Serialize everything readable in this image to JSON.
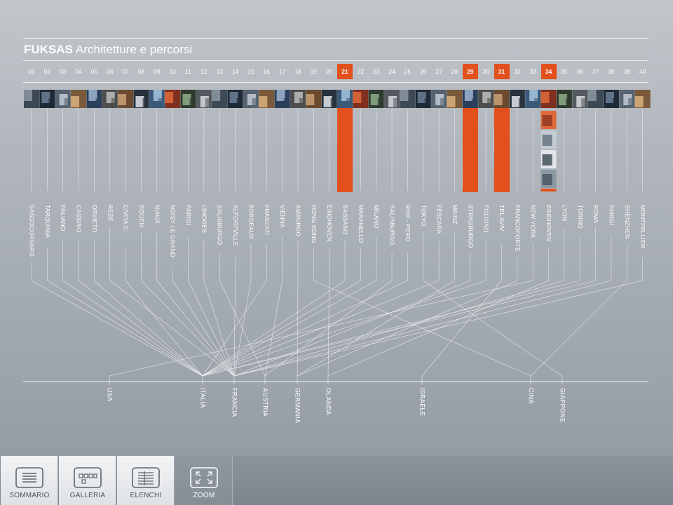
{
  "header": {
    "brand": "FUKSAS",
    "subtitle": "Architetture e percorsi"
  },
  "colors": {
    "accent": "#e2501c",
    "line": "#f4f5f6",
    "text": "#ffffff"
  },
  "projects": [
    {
      "n": "01",
      "city": "SASSOCORVARO",
      "country": "ITALIA"
    },
    {
      "n": "02",
      "city": "TARQUINIA",
      "country": "ITALIA"
    },
    {
      "n": "03",
      "city": "PALIANO",
      "country": "ITALIA"
    },
    {
      "n": "04",
      "city": "CASSINO",
      "country": "ITALIA"
    },
    {
      "n": "05",
      "city": "ORVIETO",
      "country": "ITALIA"
    },
    {
      "n": "06",
      "city": "REZÉ",
      "country": "FRANCIA"
    },
    {
      "n": "07",
      "city": "CIVITA C.",
      "country": "ITALIA"
    },
    {
      "n": "08",
      "city": "ROUEN",
      "country": "FRANCIA"
    },
    {
      "n": "09",
      "city": "NIAUX",
      "country": "FRANCIA"
    },
    {
      "n": "10",
      "city": "NOISY LE GRAND",
      "country": "FRANCIA"
    },
    {
      "n": "11",
      "city": "PARIGI",
      "country": "FRANCIA"
    },
    {
      "n": "12",
      "city": "LIMOGES",
      "country": "FRANCIA"
    },
    {
      "n": "13",
      "city": "SALISBURGO",
      "country": "AUSTRIA"
    },
    {
      "n": "14",
      "city": "ALFORTVILLE",
      "country": "FRANCIA"
    },
    {
      "n": "15",
      "city": "BORDEAUX",
      "country": "FRANCIA"
    },
    {
      "n": "16",
      "city": "FRASCATI",
      "country": "ITALIA"
    },
    {
      "n": "17",
      "city": "VIENNA",
      "country": "AUSTRIA"
    },
    {
      "n": "18",
      "city": "AMBURGO",
      "country": "GERMANIA"
    },
    {
      "n": "19",
      "city": "HONG KONG",
      "country": "CINA"
    },
    {
      "n": "20",
      "city": "EINDHOVEN",
      "country": "OLANDA"
    },
    {
      "n": "21",
      "city": "BASSANO",
      "country": "ITALIA",
      "highlight": true
    },
    {
      "n": "22",
      "city": "MARANELLO",
      "country": "ITALIA"
    },
    {
      "n": "23",
      "city": "MILANO",
      "country": "ITALIA"
    },
    {
      "n": "24",
      "city": "SALISBURGO",
      "country": "AUSTRIA"
    },
    {
      "n": "25",
      "city": "RHO - PERO",
      "country": "ITALIA"
    },
    {
      "n": "26",
      "city": "TOKYO",
      "country": "GIAPPONE"
    },
    {
      "n": "27",
      "city": "FESCARA",
      "country": "ITALIA"
    },
    {
      "n": "28",
      "city": "MAINZ",
      "country": "GERMANIA"
    },
    {
      "n": "29",
      "city": "STRASBURGO",
      "country": "FRANCIA",
      "highlight": true
    },
    {
      "n": "30",
      "city": "FOLIGNO",
      "country": "ITALIA"
    },
    {
      "n": "31",
      "city": "TEL AVIV",
      "country": "ISRAELE",
      "highlight": true
    },
    {
      "n": "32",
      "city": "FRANCOFORTE",
      "country": "GERMANIA"
    },
    {
      "n": "33",
      "city": "NEW YORK",
      "country": "USA"
    },
    {
      "n": "34",
      "city": "EINDHOVEN",
      "country": "OLANDA",
      "highlight": true
    },
    {
      "n": "35",
      "city": "LYON",
      "country": "FRANCIA"
    },
    {
      "n": "36",
      "city": "TORINO",
      "country": "ITALIA"
    },
    {
      "n": "37",
      "city": "ROMA",
      "country": "ITALIA"
    },
    {
      "n": "38",
      "city": "PARIGI",
      "country": "FRANCIA"
    },
    {
      "n": "39",
      "city": "SHENZHEN",
      "country": "CINA"
    },
    {
      "n": "40",
      "city": "MONTPELLIER",
      "country": "FRANCIA"
    }
  ],
  "countries": [
    "USA",
    "ITALIA",
    "FRANCIA",
    "AUSTRIA",
    "GERMANIA",
    "OLANDA",
    "ISRAELE",
    "CINA",
    "GIAPPONE"
  ],
  "toolbar": {
    "items": [
      {
        "label": "SOMMARIO",
        "icon": "summary-icon"
      },
      {
        "label": "GALLERIA",
        "icon": "gallery-icon"
      },
      {
        "label": "ELENCHI",
        "icon": "list-icon"
      },
      {
        "label": "ZOOM",
        "icon": "zoom-icon",
        "active": true
      }
    ]
  }
}
